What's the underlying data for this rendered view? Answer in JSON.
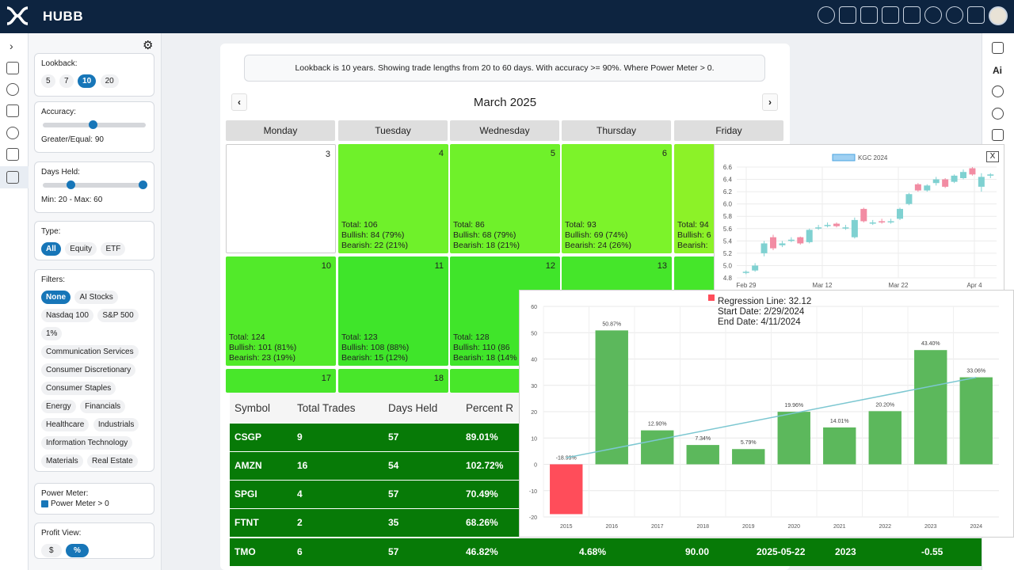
{
  "app": {
    "name": "HUBB"
  },
  "topbar_icons": [
    "lightbulb-icon",
    "person-card-icon",
    "report-icon",
    "line-chart-icon",
    "bar-chart-icon",
    "broadcast-icon",
    "pie-icon",
    "inbox-icon"
  ],
  "sidebar": {
    "lookback": {
      "label": "Lookback:",
      "options": [
        "5",
        "7",
        "10",
        "20"
      ],
      "selected": "10"
    },
    "accuracy": {
      "label": "Accuracy:",
      "value_text": "Greater/Equal: 90",
      "level": 0.9
    },
    "days_held": {
      "label": "Days Held:",
      "value_text": "Min: 20 - Max: 60",
      "min_level": 0.2,
      "max_level": 1.0
    },
    "type": {
      "label": "Type:",
      "options": [
        "All",
        "Equity",
        "ETF"
      ],
      "selected": "All"
    },
    "filters": {
      "label": "Filters:",
      "options": [
        "None",
        "AI Stocks",
        "Nasdaq 100",
        "S&P 500",
        "1%",
        "Communication Services",
        "Consumer Discretionary",
        "Consumer Staples",
        "Energy",
        "Financials",
        "Healthcare",
        "Industrials",
        "Information Technology",
        "Materials",
        "Real Estate"
      ],
      "selected": "None"
    },
    "power_meter": {
      "label": "Power Meter:",
      "checkbox_label": "Power Meter > 0",
      "checked": true
    },
    "profit_view": {
      "label": "Profit View:",
      "options": [
        "$",
        "%"
      ],
      "selected": "%"
    }
  },
  "main": {
    "notice": "Lookback is 10 years. Showing trade lengths from 20 to 60 days. With accuracy >= 90%. Where Power Meter > 0.",
    "month": "March 2025",
    "prev": "‹",
    "next": "›",
    "days": [
      "Monday",
      "Tuesday",
      "Wednesday",
      "Thursday",
      "Friday"
    ],
    "cells": [
      {
        "day": "3",
        "total": "",
        "bull": "",
        "bear": ""
      },
      {
        "day": "4",
        "total": "Total: 106",
        "bull": "Bullish: 84 (79%)",
        "bear": "Bearish: 22 (21%)"
      },
      {
        "day": "5",
        "total": "Total: 86",
        "bull": "Bullish: 68 (79%)",
        "bear": "Bearish: 18 (21%)"
      },
      {
        "day": "6",
        "total": "Total: 93",
        "bull": "Bullish: 69 (74%)",
        "bear": "Bearish: 24 (26%)"
      },
      {
        "day": "",
        "total": "Total: 94",
        "bull": "Bullish: 6",
        "bear": "Bearish:"
      },
      {
        "day": "10",
        "total": "Total: 124",
        "bull": "Bullish: 101 (81%)",
        "bear": "Bearish: 23 (19%)"
      },
      {
        "day": "11",
        "total": "Total: 123",
        "bull": "Bullish: 108 (88%)",
        "bear": "Bearish: 15 (12%)"
      },
      {
        "day": "12",
        "total": "Total: 128",
        "bull": "Bullish: 110 (86",
        "bear": "Bearish: 18 (14%"
      },
      {
        "day": "13",
        "total": "",
        "bull": "",
        "bear": ""
      },
      {
        "day": "17",
        "total": "",
        "bull": "",
        "bear": ""
      },
      {
        "day": "18",
        "total": "",
        "bull": "",
        "bear": ""
      }
    ]
  },
  "table": {
    "headers": [
      "Symbol",
      "Total Trades",
      "Days Held",
      "Percent R"
    ],
    "rows": [
      {
        "symbol": "CSGP",
        "trades": "9",
        "days": "57",
        "pct": "89.01%",
        "c5": "",
        "c6": "",
        "c7": "",
        "c8": "",
        "c9": ""
      },
      {
        "symbol": "AMZN",
        "trades": "16",
        "days": "54",
        "pct": "102.72%",
        "c5": "",
        "c6": "",
        "c7": "",
        "c8": "",
        "c9": ""
      },
      {
        "symbol": "SPGI",
        "trades": "4",
        "days": "57",
        "pct": "70.49%",
        "c5": "",
        "c6": "",
        "c7": "",
        "c8": "",
        "c9": ""
      },
      {
        "symbol": "FTNT",
        "trades": "2",
        "days": "35",
        "pct": "68.26%",
        "c5": "",
        "c6": "",
        "c7": "",
        "c8": "",
        "c9": ""
      },
      {
        "symbol": "TMO",
        "trades": "6",
        "days": "57",
        "pct": "46.82%",
        "c5": "4.68%",
        "c6": "90.00",
        "c7": "2025-05-22",
        "c8": "2023",
        "c9": "-0.55"
      }
    ]
  },
  "popup_candle": {
    "close": "X"
  },
  "popup_bars": {
    "regression": "Regression Line: 32.12",
    "start": "Start Date: 2/29/2024",
    "end": "End Date: 4/11/2024"
  },
  "chart_data": [
    {
      "type": "candlestick",
      "legend": "KGC 2024",
      "ylim": [
        4.8,
        6.6
      ],
      "yticks": [
        "6.6",
        "6.4",
        "6.2",
        "6.0",
        "5.8",
        "5.6",
        "5.4",
        "5.2",
        "5.0",
        "4.8"
      ],
      "xticks": [
        "Feb 29",
        "Mar 12",
        "Mar 22",
        "Apr 4"
      ],
      "up_color": "#7fd1d1",
      "down_color": "#f28ca3",
      "candles": [
        {
          "o": 4.88,
          "c": 4.9,
          "h": 4.92,
          "l": 4.86
        },
        {
          "o": 4.92,
          "c": 5.0,
          "h": 5.04,
          "l": 4.9
        },
        {
          "o": 5.2,
          "c": 5.36,
          "h": 5.4,
          "l": 5.15
        },
        {
          "o": 5.46,
          "c": 5.28,
          "h": 5.5,
          "l": 5.25
        },
        {
          "o": 5.33,
          "c": 5.36,
          "h": 5.4,
          "l": 5.3
        },
        {
          "o": 5.4,
          "c": 5.42,
          "h": 5.46,
          "l": 5.38
        },
        {
          "o": 5.46,
          "c": 5.36,
          "h": 5.47,
          "l": 5.34
        },
        {
          "o": 5.38,
          "c": 5.58,
          "h": 5.6,
          "l": 5.36
        },
        {
          "o": 5.62,
          "c": 5.62,
          "h": 5.66,
          "l": 5.58
        },
        {
          "o": 5.66,
          "c": 5.66,
          "h": 5.7,
          "l": 5.62
        },
        {
          "o": 5.68,
          "c": 5.64,
          "h": 5.7,
          "l": 5.62
        },
        {
          "o": 5.62,
          "c": 5.62,
          "h": 5.66,
          "l": 5.58
        },
        {
          "o": 5.46,
          "c": 5.74,
          "h": 5.78,
          "l": 5.44
        },
        {
          "o": 5.92,
          "c": 5.72,
          "h": 5.94,
          "l": 5.7
        },
        {
          "o": 5.7,
          "c": 5.7,
          "h": 5.74,
          "l": 5.66
        },
        {
          "o": 5.72,
          "c": 5.7,
          "h": 5.76,
          "l": 5.68
        },
        {
          "o": 5.72,
          "c": 5.72,
          "h": 5.76,
          "l": 5.68
        },
        {
          "o": 5.76,
          "c": 5.92,
          "h": 5.94,
          "l": 5.74
        },
        {
          "o": 6.0,
          "c": 6.16,
          "h": 6.18,
          "l": 5.98
        },
        {
          "o": 6.32,
          "c": 6.22,
          "h": 6.34,
          "l": 6.2
        },
        {
          "o": 6.22,
          "c": 6.3,
          "h": 6.32,
          "l": 6.2
        },
        {
          "o": 6.34,
          "c": 6.4,
          "h": 6.44,
          "l": 6.3
        },
        {
          "o": 6.4,
          "c": 6.28,
          "h": 6.42,
          "l": 6.26
        },
        {
          "o": 6.36,
          "c": 6.46,
          "h": 6.48,
          "l": 6.34
        },
        {
          "o": 6.42,
          "c": 6.52,
          "h": 6.56,
          "l": 6.4
        },
        {
          "o": 6.58,
          "c": 6.48,
          "h": 6.6,
          "l": 6.46
        },
        {
          "o": 6.28,
          "c": 6.44,
          "h": 6.5,
          "l": 6.2
        },
        {
          "o": 6.46,
          "c": 6.48,
          "h": 6.5,
          "l": 6.42
        }
      ]
    },
    {
      "type": "bar",
      "categories": [
        "2015",
        "2016",
        "2017",
        "2018",
        "2019",
        "2020",
        "2021",
        "2022",
        "2023",
        "2024"
      ],
      "values": [
        -18.93,
        50.87,
        12.9,
        7.34,
        5.79,
        19.96,
        14.01,
        20.2,
        43.4,
        33.06
      ],
      "labels": [
        "-18.93%",
        "50.87%",
        "12.90%",
        "7.34%",
        "5.79%",
        "19.96%",
        "14.01%",
        "20.20%",
        "43.40%",
        "33.06%"
      ],
      "ylim": [
        -20,
        60
      ],
      "yticks": [
        "60",
        "50",
        "40",
        "30",
        "20",
        "10",
        "0",
        "-10",
        "-20"
      ],
      "pos_color": "#5cb85c",
      "neg_color": "#ff4d5a",
      "trend_color": "#7cc7d1",
      "trend": {
        "start": 2.5,
        "end": 33.0
      }
    }
  ]
}
